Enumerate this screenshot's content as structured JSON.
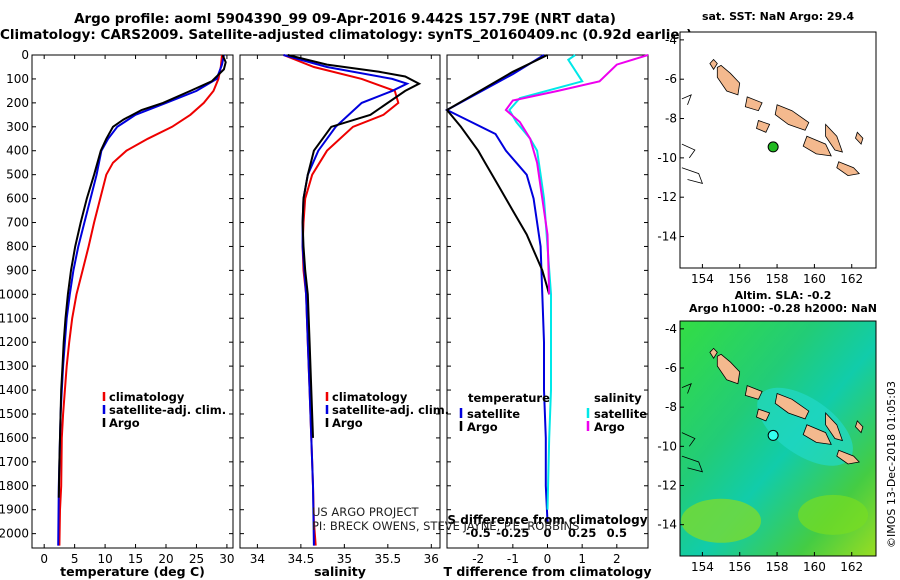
{
  "titles": {
    "line1": "Argo profile: aoml 5904390_99 09-Apr-2016 9.442S 157.79E (NRT data)",
    "line2": "Climatology: CARS2009. Satellite-adjusted climatology: synTS_20160409.nc (0.92d earlier)"
  },
  "credits": {
    "project": "US ARGO PROJECT",
    "pi": "PI: BRECK OWENS, STEVE JAYNE, P.E. ROBBINS",
    "imos": "©IMOS 13-Dec-2018 01:05:03"
  },
  "colors": {
    "climatology": "#ee0000",
    "satellite": "#0000dd",
    "argo": "#000000",
    "sal_satellite": "#00e8e8",
    "sal_argo": "#ee00ee",
    "land": "#f4b98e",
    "float_sst": "#22bb22",
    "float_sla": "#33ffee"
  },
  "chart_data": [
    {
      "type": "line",
      "panel": "temperature",
      "xlabel": "temperature (deg C)",
      "xlim": [
        -2,
        31
      ],
      "xticks": [
        0,
        5,
        10,
        15,
        20,
        25,
        30
      ],
      "ylim": [
        2060,
        0
      ],
      "yticks": [
        0,
        100,
        200,
        300,
        400,
        500,
        600,
        700,
        800,
        900,
        1000,
        1100,
        1200,
        1300,
        1400,
        1500,
        1600,
        1700,
        1800,
        1900,
        2000
      ],
      "legend": [
        "climatology",
        "satellite-adj. clim.",
        "Argo"
      ],
      "series": [
        {
          "name": "climatology",
          "color": "#ee0000",
          "x": [
            29.2,
            29.0,
            28.6,
            27.8,
            26.2,
            24.0,
            21.0,
            17.0,
            13.5,
            11.3,
            10.2,
            9.2,
            8.2,
            7.3,
            6.3,
            5.3,
            4.6,
            4.1,
            3.7,
            3.4,
            3.1,
            2.9,
            2.8,
            2.6,
            2.5
          ],
          "y": [
            0,
            50,
            100,
            150,
            200,
            250,
            300,
            350,
            400,
            450,
            500,
            600,
            700,
            800,
            900,
            1000,
            1100,
            1200,
            1300,
            1400,
            1500,
            1600,
            1800,
            1900,
            2050
          ]
        },
        {
          "name": "satellite-adj. clim.",
          "color": "#0000dd",
          "x": [
            29.5,
            29.2,
            28.3,
            25.0,
            20.0,
            15.0,
            12.0,
            10.5,
            9.4,
            8.6,
            7.6,
            6.6,
            5.6,
            4.8,
            4.2,
            3.7,
            3.4,
            3.1,
            2.9,
            2.7,
            2.6,
            2.4,
            2.3
          ],
          "y": [
            0,
            40,
            100,
            150,
            200,
            250,
            300,
            350,
            400,
            500,
            600,
            700,
            800,
            900,
            1000,
            1100,
            1200,
            1300,
            1400,
            1500,
            1600,
            1800,
            2050
          ]
        },
        {
          "name": "Argo",
          "color": "#000000",
          "x": [
            29.3,
            29.8,
            29.5,
            27.5,
            24.0,
            19.5,
            16.0,
            13.0,
            11.3,
            10.2,
            9.3,
            8.2,
            7.0,
            6.0,
            5.1,
            4.4,
            3.9,
            3.5,
            3.2,
            3.0,
            2.8,
            2.7,
            2.5,
            2.4
          ],
          "y": [
            0,
            30,
            60,
            110,
            150,
            200,
            230,
            270,
            300,
            350,
            400,
            500,
            600,
            700,
            800,
            900,
            1000,
            1100,
            1200,
            1300,
            1400,
            1500,
            1700,
            1850
          ]
        }
      ]
    },
    {
      "type": "line",
      "panel": "salinity",
      "xlabel": "salinity",
      "xlim": [
        33.8,
        36.1
      ],
      "xticks": [
        34,
        34.5,
        35,
        35.5,
        36
      ],
      "ylim": [
        2060,
        0
      ],
      "legend": [
        "climatology",
        "satellite-adj. clim.",
        "Argo"
      ],
      "series": [
        {
          "name": "climatology",
          "color": "#ee0000",
          "x": [
            34.3,
            34.65,
            35.2,
            35.58,
            35.62,
            35.45,
            35.1,
            34.8,
            34.63,
            34.55,
            34.53,
            34.52,
            34.53,
            34.56,
            34.58,
            34.6,
            34.62,
            34.64,
            34.65,
            34.67
          ],
          "y": [
            0,
            50,
            100,
            150,
            200,
            250,
            300,
            400,
            500,
            600,
            700,
            800,
            900,
            1000,
            1200,
            1400,
            1600,
            1800,
            1950,
            2050
          ]
        },
        {
          "name": "satellite-adj. clim.",
          "color": "#0000dd",
          "x": [
            34.3,
            34.8,
            35.55,
            35.72,
            35.55,
            35.2,
            34.9,
            34.7,
            34.58,
            34.53,
            34.52,
            34.52,
            34.54,
            34.56,
            34.58,
            34.6,
            34.62,
            34.64,
            34.65
          ],
          "y": [
            0,
            50,
            100,
            120,
            150,
            200,
            300,
            400,
            500,
            600,
            700,
            800,
            900,
            1000,
            1200,
            1400,
            1600,
            1800,
            2050
          ]
        },
        {
          "name": "Argo",
          "color": "#000000",
          "x": [
            34.35,
            34.8,
            35.4,
            35.7,
            35.86,
            35.7,
            35.3,
            34.85,
            34.65,
            34.58,
            34.53,
            34.52,
            34.53,
            34.55,
            34.58,
            34.6,
            34.62,
            34.64
          ],
          "y": [
            0,
            40,
            70,
            90,
            120,
            150,
            250,
            300,
            400,
            500,
            600,
            700,
            800,
            900,
            1000,
            1200,
            1400,
            1600
          ]
        }
      ]
    },
    {
      "type": "line",
      "panel": "difference",
      "xlabel": "T difference from climatology",
      "xlabel2": "S difference from climatology",
      "xlim": [
        -2.9,
        2.9
      ],
      "xticks": [
        -2,
        -1,
        0,
        1,
        2
      ],
      "xticks_top": [
        -0.5,
        -0.25,
        0,
        0.25,
        0.5
      ],
      "ylim": [
        2060,
        0
      ],
      "legend_temperature_title": "temperature",
      "legend_salinity_title": "salinity",
      "legend": [
        "satellite",
        "Argo",
        "satellite",
        "Argo"
      ],
      "series": [
        {
          "name": "T satellite",
          "color": "#0000dd",
          "x": [
            -0.1,
            -1.0,
            -2.9,
            -2.2,
            -1.5,
            -1.2,
            -0.9,
            -0.6,
            -0.4,
            -0.3,
            -0.2,
            -0.15,
            -0.1,
            -0.1,
            -0.05,
            -0.05,
            0
          ],
          "y": [
            0,
            80,
            230,
            280,
            330,
            400,
            450,
            500,
            600,
            700,
            800,
            1000,
            1200,
            1400,
            1600,
            1800,
            1950
          ]
        },
        {
          "name": "T Argo",
          "color": "#000000",
          "x": [
            0.0,
            -1.0,
            -2.9,
            -2.5,
            -2.0,
            -1.8,
            -1.6,
            -1.4,
            -1.0,
            -0.6,
            -0.3,
            -0.15,
            -0.05,
            0.05
          ],
          "y": [
            0,
            70,
            230,
            300,
            400,
            450,
            500,
            550,
            650,
            750,
            850,
            900,
            950,
            1000
          ]
        },
        {
          "name": "S satellite",
          "color": "#00e8e8",
          "x": [
            0.8,
            0.6,
            1.0,
            -0.8,
            -1.1,
            -0.9,
            -0.5,
            -0.3,
            -0.2,
            -0.1,
            0.0,
            0.1,
            0.1,
            0.1,
            0.05,
            0.0
          ],
          "y": [
            0,
            20,
            110,
            180,
            230,
            280,
            350,
            400,
            500,
            600,
            800,
            1000,
            1200,
            1400,
            1600,
            1900
          ]
        },
        {
          "name": "S Argo",
          "color": "#ee00ee",
          "x": [
            2.9,
            2.0,
            1.5,
            0.3,
            -1.0,
            -1.2,
            -0.8,
            -0.5,
            -0.3,
            -0.15,
            0.0,
            0.05
          ],
          "y": [
            0,
            40,
            110,
            150,
            190,
            230,
            280,
            350,
            450,
            600,
            750,
            1000
          ]
        }
      ]
    },
    {
      "type": "map",
      "panel": "sst",
      "title": "sat. SST: NaN Argo: 29.4",
      "xlim": [
        152.8,
        163.3
      ],
      "ylim": [
        -15.6,
        -3.6
      ],
      "xticks": [
        154,
        156,
        158,
        160,
        162
      ],
      "yticks": [
        -4,
        -6,
        -8,
        -10,
        -12,
        -14
      ],
      "float": {
        "lon": 157.79,
        "lat": -9.442
      }
    },
    {
      "type": "map",
      "panel": "sla",
      "title": "Altim. SLA: -0.2",
      "title2": "Argo h1000: -0.28 h2000: NaN",
      "xlim": [
        152.8,
        163.3
      ],
      "ylim": [
        -15.6,
        -3.6
      ],
      "xticks": [
        154,
        156,
        158,
        160,
        162
      ],
      "yticks": [
        -4,
        -6,
        -8,
        -10,
        -12,
        -14
      ],
      "float": {
        "lon": 157.79,
        "lat": -9.442
      }
    }
  ]
}
